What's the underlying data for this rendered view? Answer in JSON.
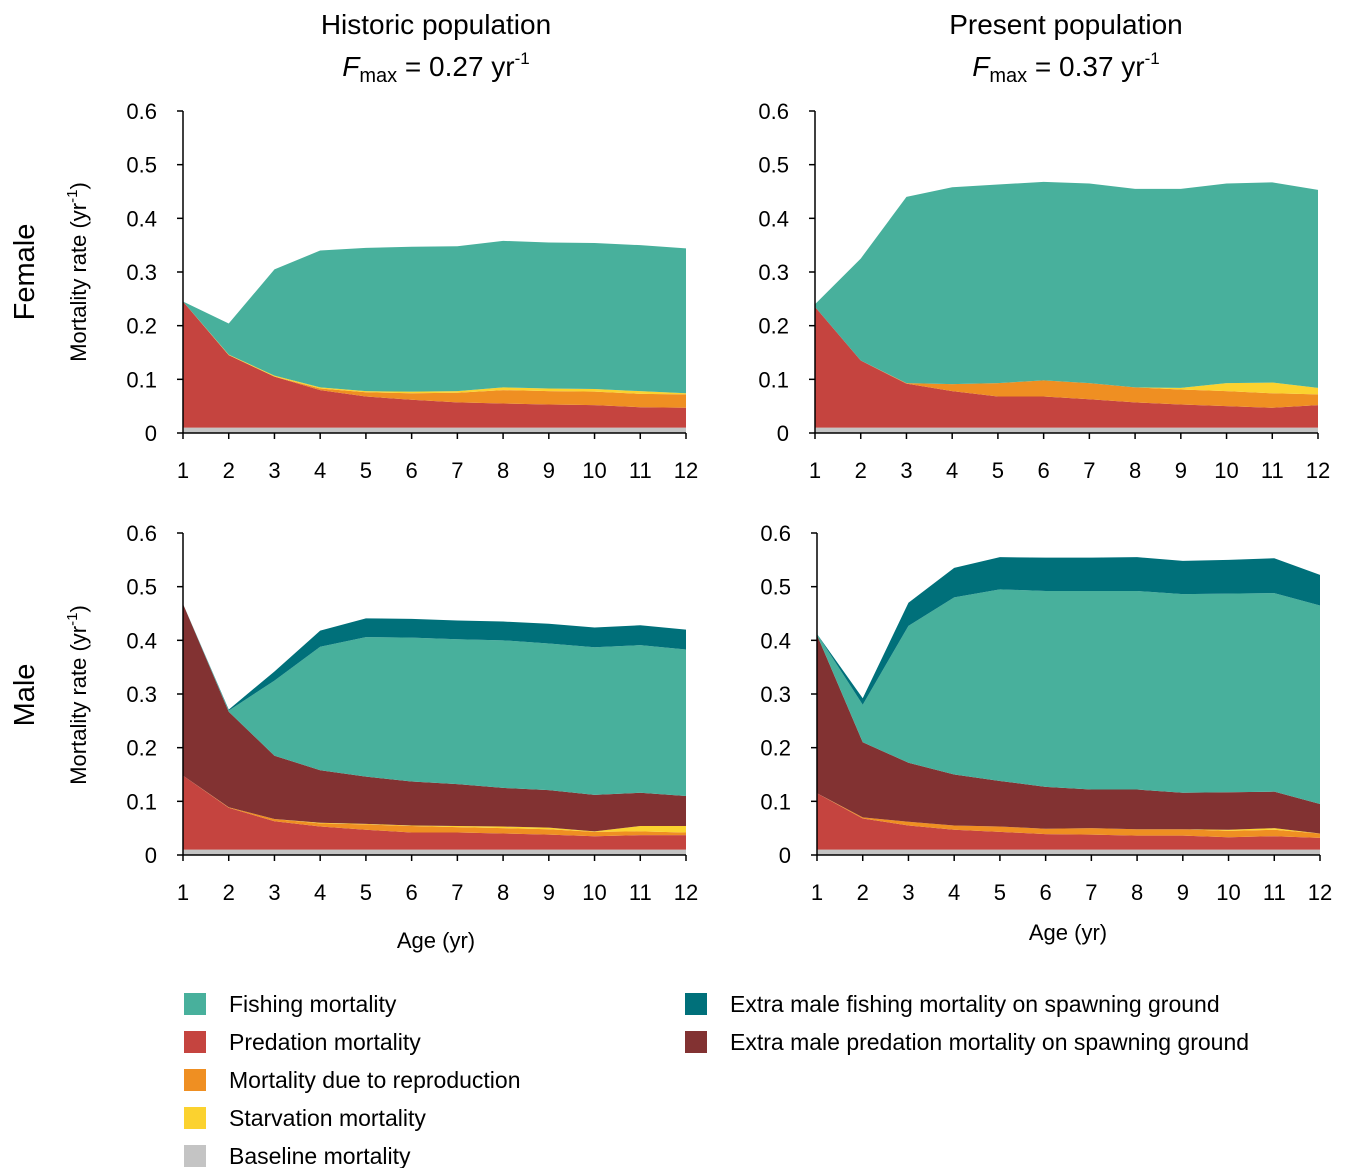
{
  "columns": [
    {
      "title": "Historic population",
      "fmax_symbol": "F",
      "fmax_sub": "max",
      "fmax_value": " = 0.27 yr",
      "fmax_exp": "-1"
    },
    {
      "title": "Present population",
      "fmax_symbol": "F",
      "fmax_sub": "max",
      "fmax_value": " = 0.37 yr",
      "fmax_exp": "-1"
    }
  ],
  "rows": [
    {
      "title": "Female"
    },
    {
      "title": "Male"
    }
  ],
  "ylabel": {
    "text": "Mortality rate (yr",
    "exp": "-1",
    "close": ")"
  },
  "xlabel": "Age (yr)",
  "colors": {
    "Fishing mortality": "#48b09c",
    "Predation mortality": "#c5443f",
    "Mortality due to reproduction": "#ef8f22",
    "Starvation mortality": "#fbd22f",
    "Baseline mortality": "#c4c4c4",
    "Extra male fishing mortality on spawning ground": "#00707a",
    "Extra male predation mortality on spawning ground": "#823232"
  },
  "legend": {
    "left": [
      "Fishing mortality",
      "Predation mortality",
      "Mortality due to reproduction",
      "Starvation mortality",
      "Baseline mortality"
    ],
    "right": [
      "Extra male fishing mortality on spawning ground",
      "Extra male predation mortality on spawning ground"
    ]
  },
  "chart_data": [
    {
      "type": "area",
      "stacked": true,
      "panel": "Historic population - Female",
      "x": [
        1,
        2,
        3,
        4,
        5,
        6,
        7,
        8,
        9,
        10,
        11,
        12
      ],
      "xlim": [
        1,
        12
      ],
      "ylim": [
        0,
        0.6
      ],
      "yticks": [
        "0",
        "0.1",
        "0.2",
        "0.3",
        "0.4",
        "0.5",
        "0.6"
      ],
      "series": [
        {
          "name": "Baseline mortality",
          "values": [
            0.01,
            0.01,
            0.01,
            0.01,
            0.01,
            0.01,
            0.01,
            0.01,
            0.01,
            0.01,
            0.01,
            0.01
          ]
        },
        {
          "name": "Predation mortality",
          "values": [
            0.235,
            0.135,
            0.095,
            0.07,
            0.058,
            0.052,
            0.047,
            0.045,
            0.043,
            0.042,
            0.038,
            0.037
          ]
        },
        {
          "name": "Mortality due to reproduction",
          "values": [
            0,
            0,
            0,
            0.003,
            0.008,
            0.012,
            0.018,
            0.025,
            0.025,
            0.025,
            0.025,
            0.025
          ]
        },
        {
          "name": "Starvation mortality",
          "values": [
            0,
            0.001,
            0.002,
            0.002,
            0.002,
            0.003,
            0.003,
            0.005,
            0.005,
            0.005,
            0.005,
            0.002
          ]
        },
        {
          "name": "Fishing mortality",
          "values": [
            0,
            0.058,
            0.198,
            0.255,
            0.267,
            0.27,
            0.27,
            0.273,
            0.272,
            0.272,
            0.272,
            0.27
          ]
        }
      ]
    },
    {
      "type": "area",
      "stacked": true,
      "panel": "Present population - Female",
      "x": [
        1,
        2,
        3,
        4,
        5,
        6,
        7,
        8,
        9,
        10,
        11,
        12
      ],
      "xlim": [
        1,
        12
      ],
      "ylim": [
        0,
        0.6
      ],
      "yticks": [
        "0",
        "0.1",
        "0.2",
        "0.3",
        "0.4",
        "0.5",
        "0.6"
      ],
      "series": [
        {
          "name": "Baseline mortality",
          "values": [
            0.01,
            0.01,
            0.01,
            0.01,
            0.01,
            0.01,
            0.01,
            0.01,
            0.01,
            0.01,
            0.01,
            0.01
          ]
        },
        {
          "name": "Predation mortality",
          "values": [
            0.225,
            0.125,
            0.082,
            0.068,
            0.058,
            0.058,
            0.053,
            0.047,
            0.043,
            0.04,
            0.037,
            0.042
          ]
        },
        {
          "name": "Mortality due to reproduction",
          "values": [
            0,
            0,
            0.001,
            0.013,
            0.025,
            0.03,
            0.03,
            0.028,
            0.028,
            0.028,
            0.027,
            0.02
          ]
        },
        {
          "name": "Starvation mortality",
          "values": [
            0,
            0,
            0,
            0,
            0,
            0,
            0,
            0,
            0.003,
            0.015,
            0.02,
            0.012
          ]
        },
        {
          "name": "Fishing mortality",
          "values": [
            0.005,
            0.19,
            0.347,
            0.367,
            0.37,
            0.37,
            0.372,
            0.37,
            0.371,
            0.372,
            0.373,
            0.369
          ]
        }
      ]
    },
    {
      "type": "area",
      "stacked": true,
      "panel": "Historic population - Male",
      "x": [
        1,
        2,
        3,
        4,
        5,
        6,
        7,
        8,
        9,
        10,
        11,
        12
      ],
      "xlim": [
        1,
        12
      ],
      "ylim": [
        0,
        0.6
      ],
      "yticks": [
        "0",
        "0.1",
        "0.2",
        "0.3",
        "0.4",
        "0.5",
        "0.6"
      ],
      "series": [
        {
          "name": "Baseline mortality",
          "values": [
            0.01,
            0.01,
            0.01,
            0.01,
            0.01,
            0.01,
            0.01,
            0.01,
            0.01,
            0.01,
            0.01,
            0.01
          ]
        },
        {
          "name": "Predation mortality",
          "values": [
            0.138,
            0.078,
            0.053,
            0.043,
            0.037,
            0.032,
            0.032,
            0.03,
            0.028,
            0.025,
            0.027,
            0.027
          ]
        },
        {
          "name": "Mortality due to reproduction",
          "values": [
            0,
            0.001,
            0.004,
            0.006,
            0.01,
            0.012,
            0.01,
            0.01,
            0.01,
            0.008,
            0.007,
            0.005
          ]
        },
        {
          "name": "Starvation mortality",
          "values": [
            0,
            0,
            0,
            0.001,
            0.001,
            0.001,
            0.002,
            0.003,
            0.003,
            0.001,
            0.01,
            0.012
          ]
        },
        {
          "name": "Extra male predation mortality on spawning ground",
          "values": [
            0.32,
            0.178,
            0.118,
            0.098,
            0.088,
            0.082,
            0.078,
            0.072,
            0.07,
            0.068,
            0.062,
            0.056
          ]
        },
        {
          "name": "Fishing mortality",
          "values": [
            0,
            0.002,
            0.14,
            0.23,
            0.26,
            0.268,
            0.27,
            0.275,
            0.273,
            0.275,
            0.275,
            0.273
          ]
        },
        {
          "name": "Extra male fishing mortality on spawning ground",
          "values": [
            0,
            0.002,
            0.017,
            0.03,
            0.035,
            0.035,
            0.035,
            0.035,
            0.037,
            0.037,
            0.037,
            0.037
          ]
        }
      ]
    },
    {
      "type": "area",
      "stacked": true,
      "panel": "Present population - Male",
      "x": [
        1,
        2,
        3,
        4,
        5,
        6,
        7,
        8,
        9,
        10,
        11,
        12
      ],
      "xlim": [
        1,
        12
      ],
      "ylim": [
        0,
        0.6
      ],
      "yticks": [
        "0",
        "0.1",
        "0.2",
        "0.3",
        "0.4",
        "0.5",
        "0.6"
      ],
      "series": [
        {
          "name": "Baseline mortality",
          "values": [
            0.01,
            0.01,
            0.01,
            0.01,
            0.01,
            0.01,
            0.01,
            0.01,
            0.01,
            0.01,
            0.01,
            0.01
          ]
        },
        {
          "name": "Predation mortality",
          "values": [
            0.105,
            0.058,
            0.045,
            0.037,
            0.033,
            0.029,
            0.028,
            0.026,
            0.026,
            0.023,
            0.025,
            0.022
          ]
        },
        {
          "name": "Mortality due to reproduction",
          "values": [
            0,
            0.002,
            0.007,
            0.008,
            0.01,
            0.01,
            0.012,
            0.012,
            0.012,
            0.012,
            0.012,
            0.008
          ]
        },
        {
          "name": "Starvation mortality",
          "values": [
            0,
            0,
            0,
            0,
            0,
            0,
            0,
            0,
            0,
            0.002,
            0.003,
            0
          ]
        },
        {
          "name": "Extra male predation mortality on spawning ground",
          "values": [
            0.295,
            0.14,
            0.11,
            0.095,
            0.085,
            0.078,
            0.072,
            0.074,
            0.068,
            0.07,
            0.068,
            0.055
          ]
        },
        {
          "name": "Fishing mortality",
          "values": [
            0.002,
            0.07,
            0.255,
            0.33,
            0.357,
            0.365,
            0.37,
            0.37,
            0.37,
            0.37,
            0.37,
            0.37
          ]
        },
        {
          "name": "Extra male fishing mortality on spawning ground",
          "values": [
            0,
            0.012,
            0.043,
            0.055,
            0.06,
            0.062,
            0.062,
            0.063,
            0.062,
            0.063,
            0.065,
            0.057
          ]
        }
      ]
    }
  ]
}
